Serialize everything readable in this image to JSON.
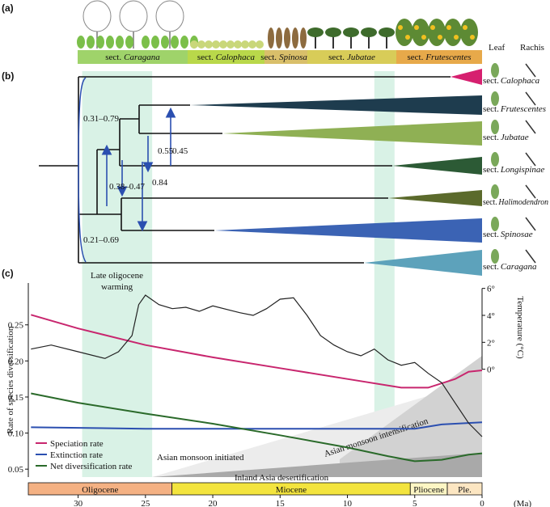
{
  "panel_labels": [
    "(a)",
    "(b)",
    "(c)"
  ],
  "section_prefix": "sect.",
  "panel_a": {
    "sections": [
      {
        "name": "Caragana",
        "color": "#9fd36a"
      },
      {
        "name": "Calophaca",
        "color": "#b9d84a"
      },
      {
        "name": "Spinosae",
        "color": "#d9bf6a"
      },
      {
        "name": "Jubatae",
        "color": "#d8cc58"
      },
      {
        "name": "Frutescentes",
        "color": "#e7a94a"
      }
    ]
  },
  "panel_b": {
    "column_headers": [
      "Leaf",
      "Rachis"
    ],
    "tips": [
      {
        "name": "Calophaca",
        "color": "#d6206f"
      },
      {
        "name": "Frutescentes",
        "color": "#1e3c4e"
      },
      {
        "name": "Jubatae",
        "color": "#8fb054"
      },
      {
        "name": "Longispinae",
        "color": "#2c5a35"
      },
      {
        "name": "Halimodendron",
        "color": "#5b6a2c"
      },
      {
        "name": "Spinosae",
        "color": "#3b63b4"
      },
      {
        "name": "Caragana",
        "color": "#5da2bb"
      }
    ],
    "rate_labels": [
      "0.31–0.79",
      "0.38–0.47",
      "0.84",
      "0.55",
      "0.45",
      "0.21–0.69"
    ]
  },
  "chart_data": {
    "type": "line",
    "y_label": "Rate of species diversification",
    "y2_label": "Temperature (°C)",
    "x_unit_label": "(Ma)",
    "xlim": [
      33.7,
      0
    ],
    "xticks": [
      30,
      25,
      20,
      15,
      10,
      5,
      0
    ],
    "ylim": [
      0.039,
      0.308
    ],
    "yticks": [
      0.05,
      {
        "value": 0.1,
        "label": "0.10"
      },
      0.15,
      {
        "value": 0.2,
        "label": "0.20"
      },
      0.25
    ],
    "y2lim": [
      -8,
      6.4
    ],
    "y2ticks": [
      {
        "value": 0,
        "label": "0°"
      },
      {
        "value": 2,
        "label": "2°"
      },
      {
        "value": 4,
        "label": "4°"
      },
      {
        "value": 6,
        "label": "6°"
      }
    ],
    "series": [
      {
        "name": "Speciation rate",
        "color": "#c8266e",
        "x": [
          33.5,
          30,
          25,
          20,
          15,
          10,
          6,
          4,
          2,
          1,
          0
        ],
        "values": [
          0.264,
          0.245,
          0.222,
          0.205,
          0.19,
          0.175,
          0.163,
          0.163,
          0.175,
          0.185,
          0.187
        ]
      },
      {
        "name": "Extinction rate",
        "color": "#2b4fb0",
        "x": [
          33.5,
          25,
          15,
          5,
          3,
          0
        ],
        "values": [
          0.108,
          0.106,
          0.106,
          0.106,
          0.112,
          0.115
        ]
      },
      {
        "name": "Net diversification rate",
        "color": "#2a6a2a",
        "x": [
          33.5,
          30,
          25,
          20,
          15,
          10,
          7,
          5,
          3,
          1,
          0
        ],
        "values": [
          0.155,
          0.142,
          0.127,
          0.113,
          0.097,
          0.08,
          0.068,
          0.061,
          0.063,
          0.07,
          0.072
        ]
      },
      {
        "color": "#222222",
        "axis": "y2",
        "x": [
          33.5,
          32,
          30,
          28,
          27,
          26,
          25.5,
          25,
          24,
          23,
          22,
          21,
          20,
          18,
          17,
          16,
          15,
          14,
          13,
          12,
          11,
          10,
          9,
          8,
          7,
          6,
          5,
          4,
          3,
          2,
          1,
          0
        ],
        "values": [
          1.5,
          1.8,
          1.3,
          0.8,
          1.3,
          2.5,
          4.8,
          5.5,
          4.8,
          4.5,
          4.6,
          4.3,
          4.7,
          4.2,
          4.0,
          4.5,
          5.2,
          5.3,
          4.0,
          2.5,
          1.8,
          1.3,
          1.0,
          1.5,
          0.7,
          0.3,
          0.5,
          -0.3,
          -1.0,
          -2.5,
          -4.0,
          -5.0
        ]
      }
    ],
    "bands": [
      [
        29.7,
        24.5
      ],
      [
        8,
        6.5
      ]
    ],
    "band_color": "#d9f2e6",
    "epochs": [
      {
        "name": "Oligocene",
        "start": 33.9,
        "end": 23.03,
        "color": "#f4b183"
      },
      {
        "name": "Miocene",
        "start": 23.03,
        "end": 5.33,
        "color": "#f3e43e"
      },
      {
        "name": "Pliocene",
        "start": 5.33,
        "end": 2.58,
        "color": "#fdf6c4"
      },
      {
        "name": "Ple.",
        "start": 2.58,
        "end": 0,
        "color": "#fce6c2"
      }
    ],
    "annotations": {
      "warming": [
        "Late oligocene",
        "warming"
      ],
      "monsoon_initiated": "Asian monsoon initiated",
      "monsoon_intensification": "Asian monsoon intensification",
      "desertification": "Inland Asia desertification"
    }
  }
}
